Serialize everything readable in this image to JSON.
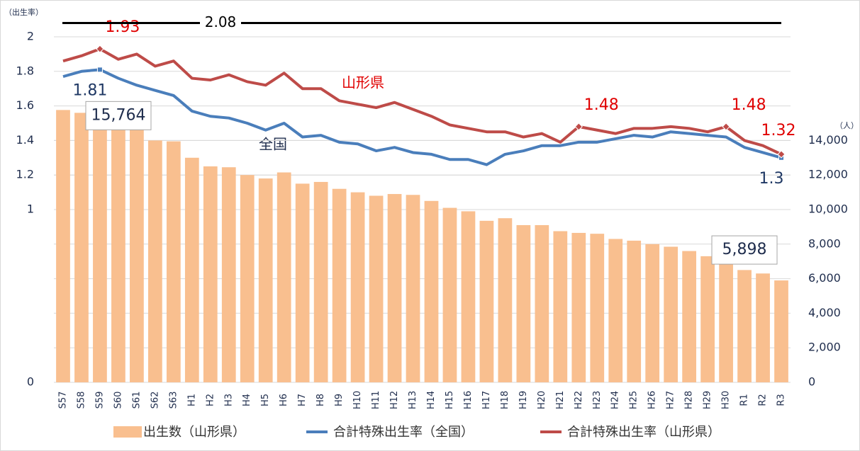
{
  "chart_data": {
    "type": "bar-line",
    "y_label": "（出生率）",
    "y2_label": "（人）",
    "categories": [
      "S57",
      "S58",
      "S59",
      "S60",
      "S61",
      "S62",
      "S63",
      "H1",
      "H2",
      "H3",
      "H4",
      "H5",
      "H6",
      "H7",
      "H8",
      "H9",
      "H10",
      "H11",
      "H12",
      "H13",
      "H14",
      "H15",
      "H16",
      "H17",
      "H18",
      "H19",
      "H20",
      "H21",
      "H22",
      "H23",
      "H24",
      "H25",
      "H26",
      "H27",
      "H28",
      "H29",
      "H30",
      "R1",
      "R2",
      "R3"
    ],
    "series": [
      {
        "name": "出生数（山形県）",
        "type": "bar",
        "axis": "y2",
        "color": "#f9bf8f",
        "values": [
          15764,
          15600,
          15300,
          15000,
          14700,
          14000,
          13950,
          13000,
          12500,
          12450,
          12000,
          11800,
          12150,
          11500,
          11600,
          11200,
          11000,
          10800,
          10900,
          10850,
          10500,
          10100,
          9900,
          9350,
          9500,
          9100,
          9100,
          8750,
          8650,
          8600,
          8300,
          8200,
          8000,
          7850,
          7600,
          7300,
          7050,
          6500,
          6300,
          5898
        ],
        "value_labels": [
          "15,764",
          null,
          null,
          null,
          null,
          null,
          null,
          null,
          null,
          null,
          null,
          null,
          null,
          null,
          null,
          null,
          null,
          null,
          null,
          null,
          null,
          null,
          null,
          null,
          null,
          null,
          null,
          null,
          null,
          null,
          null,
          null,
          null,
          null,
          null,
          null,
          null,
          null,
          null,
          "5,898"
        ]
      },
      {
        "name": "合計特殊出生率（全国）",
        "type": "line",
        "color": "#4a7ebb",
        "label_color": "#1f3864",
        "values": [
          1.77,
          1.8,
          1.81,
          1.76,
          1.72,
          1.69,
          1.66,
          1.57,
          1.54,
          1.53,
          1.5,
          1.46,
          1.5,
          1.42,
          1.43,
          1.39,
          1.38,
          1.34,
          1.36,
          1.33,
          1.32,
          1.29,
          1.29,
          1.26,
          1.32,
          1.34,
          1.37,
          1.37,
          1.39,
          1.39,
          1.41,
          1.43,
          1.42,
          1.45,
          1.44,
          1.43,
          1.42,
          1.36,
          1.33,
          1.3
        ],
        "value_labels": [
          null,
          null,
          "1.81",
          null,
          null,
          null,
          null,
          null,
          null,
          null,
          null,
          null,
          null,
          null,
          null,
          null,
          null,
          null,
          null,
          null,
          null,
          null,
          null,
          null,
          null,
          null,
          null,
          null,
          null,
          null,
          null,
          null,
          null,
          null,
          null,
          null,
          null,
          null,
          null,
          "1.3"
        ]
      },
      {
        "name": "合計特殊出生率（山形県）",
        "type": "line",
        "color": "#be4b48",
        "label_color": "#e00000",
        "values": [
          1.86,
          1.89,
          1.93,
          1.87,
          1.9,
          1.83,
          1.86,
          1.76,
          1.75,
          1.78,
          1.74,
          1.72,
          1.79,
          1.7,
          1.7,
          1.63,
          1.61,
          1.59,
          1.62,
          1.58,
          1.54,
          1.49,
          1.47,
          1.45,
          1.45,
          1.42,
          1.44,
          1.39,
          1.48,
          1.46,
          1.44,
          1.47,
          1.47,
          1.48,
          1.47,
          1.45,
          1.48,
          1.4,
          1.37,
          1.32
        ],
        "value_labels": [
          null,
          null,
          "1.93",
          null,
          null,
          null,
          null,
          null,
          null,
          null,
          null,
          null,
          null,
          null,
          null,
          null,
          null,
          null,
          null,
          null,
          null,
          null,
          null,
          null,
          null,
          null,
          null,
          null,
          "1.48",
          null,
          null,
          null,
          null,
          null,
          null,
          null,
          "1.48",
          null,
          null,
          "1.32"
        ]
      }
    ],
    "annotations": [
      "山形県",
      "全国"
    ],
    "reference_line": 2.08,
    "ylim": [
      0,
      2.1
    ],
    "yticks": [
      0,
      1,
      1.2,
      1.4,
      1.6,
      1.8,
      2
    ],
    "y2lim": [
      0,
      21000
    ],
    "y2ticks": [
      0,
      {
        "value": 2000,
        "label": "2,000"
      },
      {
        "value": 4000,
        "label": "4,000"
      },
      {
        "value": 6000,
        "label": "6,000"
      },
      {
        "value": 8000,
        "label": "8,000"
      },
      {
        "value": 10000,
        "label": "10,000"
      },
      {
        "value": 12000,
        "label": "12,000"
      },
      {
        "value": 14000,
        "label": "14,000"
      }
    ],
    "grid": true,
    "legend": "bottom"
  }
}
